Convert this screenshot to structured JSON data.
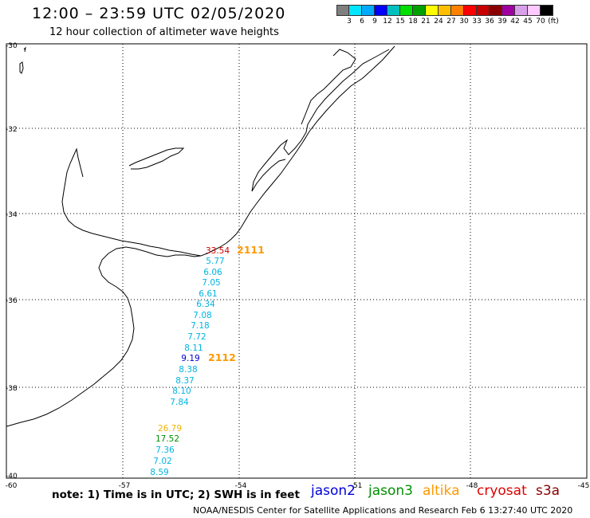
{
  "header": {
    "title": "12:00 – 23:59 UTC 02/05/2020",
    "subtitle": "12 hour collection of altimeter wave heights"
  },
  "scale": {
    "colors": [
      "#7f7f7f",
      "#00e5ff",
      "#00aaff",
      "#0000ff",
      "#00bfbf",
      "#00e000",
      "#00a000",
      "#ffff00",
      "#ffbf00",
      "#ff8000",
      "#ff0000",
      "#c80000",
      "#8a0000",
      "#a000a0",
      "#d8a0e8",
      "#ffc8ff",
      "#000000"
    ],
    "labels": [
      "3",
      "6",
      "9",
      "12",
      "15",
      "18",
      "21",
      "24",
      "27",
      "30",
      "33",
      "36",
      "39",
      "42",
      "45",
      "70",
      "(ft)"
    ]
  },
  "axes": {
    "lat_labels": [
      "-30",
      "-32",
      "-34",
      "-36",
      "-38",
      "-40"
    ],
    "lon_labels": [
      "-60",
      "-57",
      "-54",
      "-51",
      "-48",
      "-45"
    ]
  },
  "observations": [
    {
      "value": "33.54",
      "color": "#cc0000"
    },
    {
      "value": "5.77",
      "color": "#00b4e0"
    },
    {
      "value": "6.06",
      "color": "#00b4e0"
    },
    {
      "value": "7.05",
      "color": "#00b4e0"
    },
    {
      "value": "6.61",
      "color": "#00b4e0"
    },
    {
      "value": "6.34",
      "color": "#00b4e0"
    },
    {
      "value": "7.08",
      "color": "#00b4e0"
    },
    {
      "value": "7.18",
      "color": "#00b4e0"
    },
    {
      "value": "7.72",
      "color": "#00b4e0"
    },
    {
      "value": "8.11",
      "color": "#00b4e0"
    },
    {
      "value": "9.19",
      "color": "#0000cc"
    },
    {
      "value": "8.38",
      "color": "#00b4e0"
    },
    {
      "value": "8.37",
      "color": "#00b4e0"
    },
    {
      "value": "8.10",
      "color": "#00b4e0"
    },
    {
      "value": "7.84",
      "color": "#00b4e0"
    },
    {
      "value": "26.79",
      "color": "#f0b400"
    },
    {
      "value": "17.52",
      "color": "#009000"
    },
    {
      "value": "7.36",
      "color": "#00b4e0"
    },
    {
      "value": "7.02",
      "color": "#00b4e0"
    },
    {
      "value": "8.59",
      "color": "#00b4e0"
    }
  ],
  "pass_times": [
    {
      "value": "2111",
      "color": "#ff9900"
    },
    {
      "value": "2112",
      "color": "#ff9900"
    }
  ],
  "note": "note:  1) Time is in UTC;  2) SWH is in feet",
  "legend": [
    {
      "name": "jason2",
      "color": "#0000dd"
    },
    {
      "name": "jason3",
      "color": "#009000"
    },
    {
      "name": "altika",
      "color": "#ff9900"
    },
    {
      "name": "cryosat",
      "color": "#dd0000"
    },
    {
      "name": "s3a",
      "color": "#8b0000"
    }
  ],
  "footer": "NOAA/NESDIS Center for Satellite Applications and Research     Feb  6 13:27:40 UTC 2020"
}
